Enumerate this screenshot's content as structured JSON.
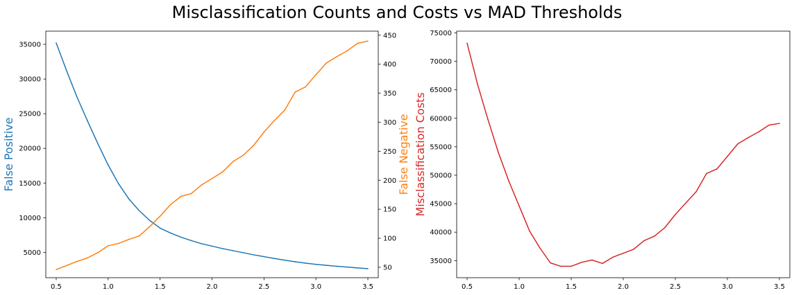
{
  "figure": {
    "title": "Misclassification Counts and Costs vs MAD Thresholds"
  },
  "chart_data": [
    {
      "type": "line",
      "x": [
        0.5,
        0.6,
        0.7,
        0.8,
        0.9,
        1.0,
        1.1,
        1.2,
        1.3,
        1.4,
        1.5,
        1.6,
        1.7,
        1.8,
        1.9,
        2.0,
        2.1,
        2.2,
        2.3,
        2.4,
        2.5,
        2.6,
        2.7,
        2.8,
        2.9,
        3.0,
        3.1,
        3.2,
        3.3,
        3.4,
        3.5
      ],
      "xlim": [
        0.4,
        3.6
      ],
      "xticks": [
        0.5,
        1.0,
        1.5,
        2.0,
        2.5,
        3.0,
        3.5
      ],
      "xtick_labels": [
        "0.5",
        "1.0",
        "1.5",
        "2.0",
        "2.5",
        "3.0",
        "3.5"
      ],
      "series": [
        {
          "name": "False Positive",
          "axis": "left",
          "color": "#1f77b4",
          "values": [
            35200,
            31200,
            27400,
            24000,
            20700,
            17600,
            14900,
            12700,
            11000,
            9600,
            8500,
            7800,
            7200,
            6700,
            6250,
            5900,
            5550,
            5250,
            4950,
            4650,
            4380,
            4120,
            3870,
            3650,
            3450,
            3270,
            3130,
            3000,
            2880,
            2760,
            2650
          ]
        },
        {
          "name": "False Negative",
          "axis": "right",
          "color": "#ff7f0e",
          "values": [
            46,
            53,
            60,
            66,
            75,
            87,
            91,
            98,
            104,
            120,
            138,
            158,
            172,
            177,
            192,
            203,
            214,
            232,
            243,
            260,
            283,
            303,
            321,
            352,
            361,
            382,
            402,
            413,
            423,
            436,
            440
          ]
        }
      ],
      "yleft": {
        "label": "False Positive",
        "lim": [
          1350,
          36900
        ],
        "ticks": [
          5000,
          10000,
          15000,
          20000,
          25000,
          30000,
          35000
        ],
        "tick_labels": [
          "5000",
          "10000",
          "15000",
          "20000",
          "25000",
          "30000",
          "35000"
        ]
      },
      "yright": {
        "label": "False Negative",
        "lim": [
          32,
          457
        ],
        "ticks": [
          50,
          100,
          150,
          200,
          250,
          300,
          350,
          400,
          450
        ],
        "tick_labels": [
          "50",
          "100",
          "150",
          "200",
          "250",
          "300",
          "350",
          "400",
          "450"
        ]
      }
    },
    {
      "type": "line",
      "x": [
        0.5,
        0.6,
        0.7,
        0.8,
        0.9,
        1.0,
        1.1,
        1.2,
        1.3,
        1.4,
        1.5,
        1.6,
        1.7,
        1.8,
        1.9,
        2.0,
        2.1,
        2.2,
        2.3,
        2.4,
        2.5,
        2.6,
        2.7,
        2.8,
        2.9,
        3.0,
        3.1,
        3.2,
        3.3,
        3.4,
        3.5
      ],
      "xlim": [
        0.4,
        3.6
      ],
      "xticks": [
        0.5,
        1.0,
        1.5,
        2.0,
        2.5,
        3.0,
        3.5
      ],
      "xtick_labels": [
        "0.5",
        "1.0",
        "1.5",
        "2.0",
        "2.5",
        "3.0",
        "3.5"
      ],
      "series": [
        {
          "name": "Misclassification Costs",
          "axis": "left",
          "color": "#d62728",
          "values": [
            73200,
            66000,
            59800,
            54000,
            49000,
            44600,
            40200,
            37200,
            34600,
            34000,
            34000,
            34700,
            35100,
            34500,
            35600,
            36300,
            37000,
            38500,
            39300,
            40800,
            43100,
            45100,
            47100,
            50300,
            51100,
            53300,
            55500,
            56600,
            57600,
            58800,
            59100
          ]
        }
      ],
      "yleft": {
        "label": "Misclassification Costs",
        "lim": [
          32000,
          75300
        ],
        "ticks": [
          35000,
          40000,
          45000,
          50000,
          55000,
          60000,
          65000,
          70000,
          75000
        ],
        "tick_labels": [
          "35000",
          "40000",
          "45000",
          "50000",
          "55000",
          "60000",
          "65000",
          "70000",
          "75000"
        ]
      }
    }
  ]
}
